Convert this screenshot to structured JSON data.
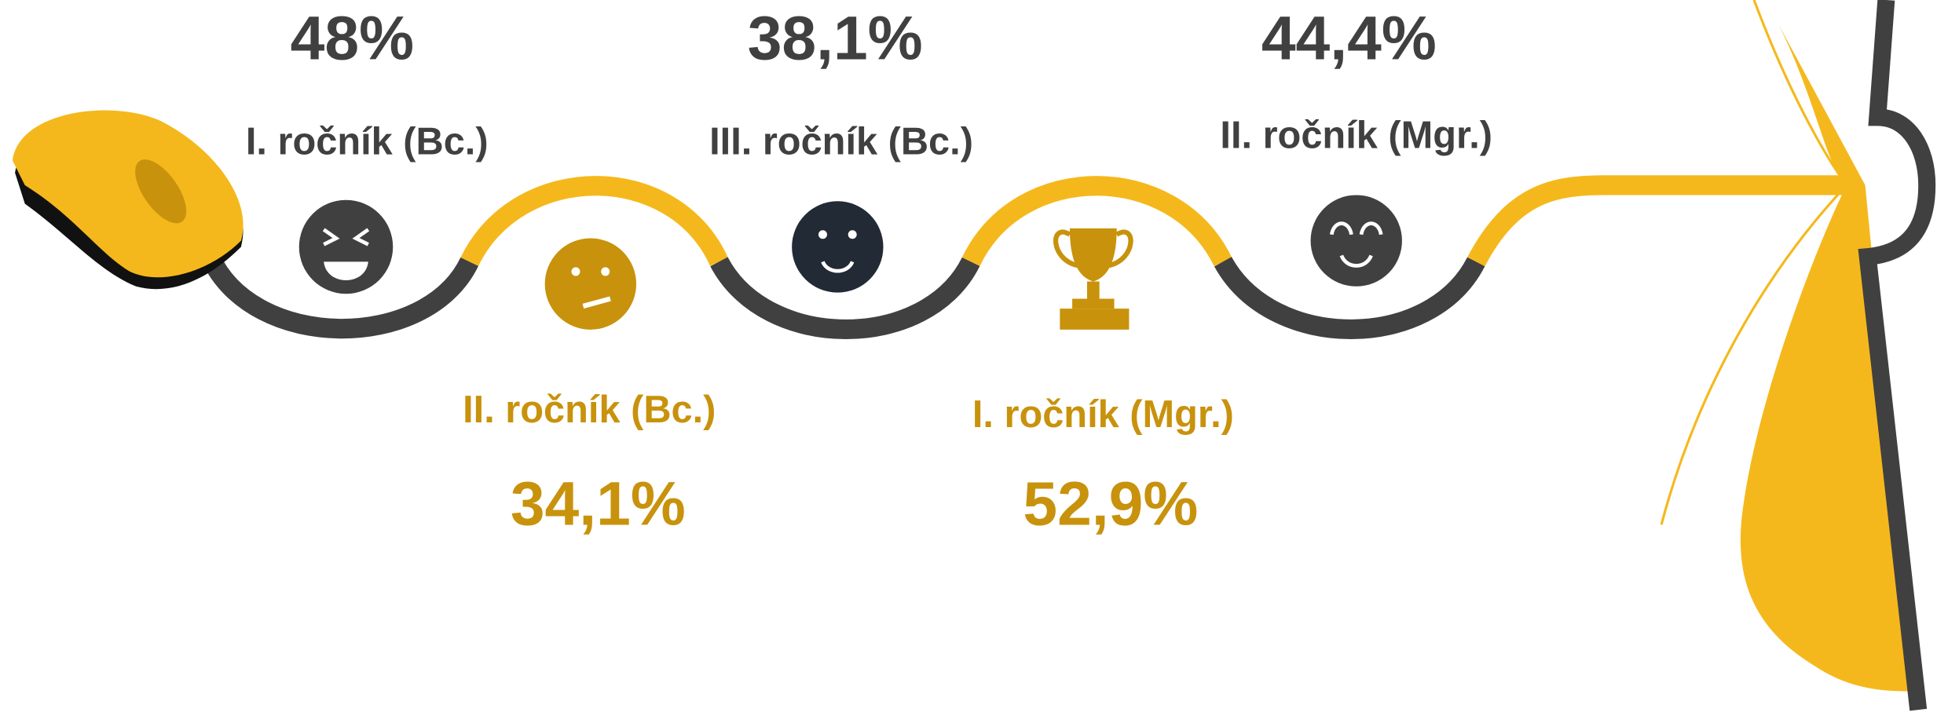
{
  "items": [
    {
      "label": "I. ročník (Bc.)",
      "value": "48%"
    },
    {
      "label": "II. ročník (Bc.)",
      "value": "34,1%"
    },
    {
      "label": "III. ročník (Bc.)",
      "value": "38,1%"
    },
    {
      "label": "I. ročník (Mgr.)",
      "value": "52,9%"
    },
    {
      "label": "II. ročník (Mgr.)",
      "value": "44,4%"
    }
  ]
}
